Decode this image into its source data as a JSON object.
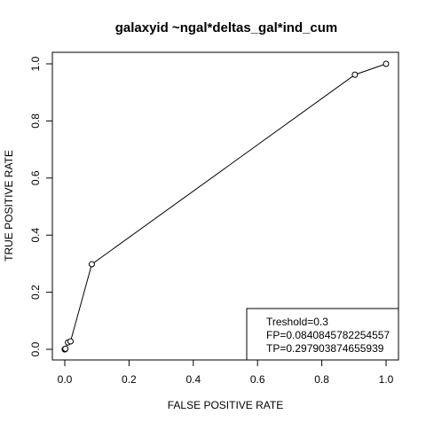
{
  "chart_data": {
    "type": "line",
    "title": "galaxyid ~ngal*deltas_gal*ind_cum",
    "xlabel": "FALSE POSITIVE RATE",
    "ylabel": "TRUE POSITIVE RATE",
    "xlim": [
      0,
      1
    ],
    "ylim": [
      0,
      1
    ],
    "x_ticks": [
      "0.0",
      "0.2",
      "0.4",
      "0.6",
      "0.8",
      "1.0"
    ],
    "y_ticks": [
      "0.0",
      "0.2",
      "0.4",
      "0.6",
      "0.8",
      "1.0"
    ],
    "grid": false,
    "legend_position": "bottom-right",
    "series": [
      {
        "x": [
          0.0,
          0.0,
          0.001,
          0.002,
          0.01,
          0.018,
          0.084,
          0.903,
          1.0
        ],
        "y": [
          0.0,
          0.0,
          0.001,
          0.002,
          0.024,
          0.028,
          0.298,
          0.962,
          1.0
        ]
      }
    ],
    "legend_lines": [
      "Treshold=0.3",
      "FP=0.0840845782254557",
      "TP=0.297903874655939"
    ]
  }
}
